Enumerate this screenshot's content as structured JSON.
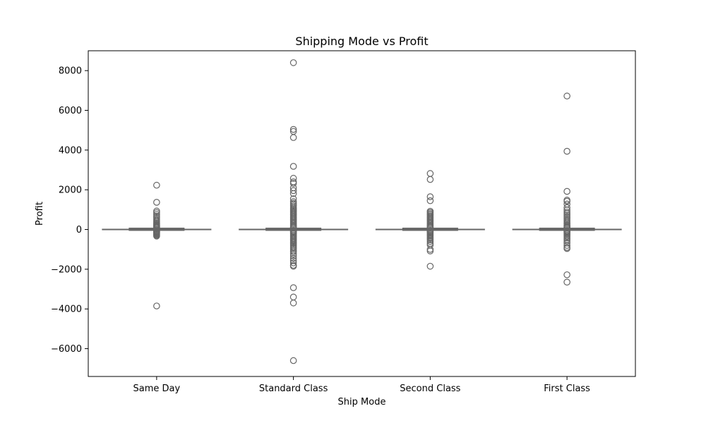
{
  "chart_data": {
    "type": "box",
    "title": "Shipping Mode vs Profit",
    "xlabel": "Ship Mode",
    "ylabel": "Profit",
    "categories": [
      "Same Day",
      "Standard Class",
      "Second Class",
      "First Class"
    ],
    "ylim": [
      -7400,
      9000
    ],
    "yticks": [
      -6000,
      -4000,
      -2000,
      0,
      2000,
      4000,
      6000,
      8000
    ],
    "ytick_labels": [
      "−6000",
      "−4000",
      "−2000",
      "0",
      "2000",
      "4000",
      "6000",
      "8000"
    ],
    "grid": false,
    "colors": {
      "box_edge": "#666666",
      "box_fill": "#ffffff",
      "frame": "#000000"
    },
    "boxes": [
      {
        "category": "Same Day",
        "q1": 2,
        "median": 9,
        "q3": 30,
        "whisker_low": -40,
        "whisker_high": 70,
        "outliers": [
          2230,
          1370,
          930,
          850,
          760,
          680,
          600,
          520,
          450,
          390,
          330,
          280,
          240,
          200,
          170,
          140,
          110,
          90,
          -60,
          -80,
          -100,
          -120,
          -150,
          -180,
          -210,
          -250,
          -290,
          -330,
          -3850
        ]
      },
      {
        "category": "Standard Class",
        "q1": 2,
        "median": 9,
        "q3": 30,
        "whisker_low": -40,
        "whisker_high": 70,
        "outliers": [
          8400,
          5040,
          4940,
          4630,
          3180,
          2580,
          2400,
          2320,
          2100,
          1960,
          1810,
          1550,
          1400,
          1320,
          1250,
          1180,
          1100,
          1040,
          980,
          920,
          860,
          800,
          740,
          680,
          620,
          560,
          500,
          440,
          380,
          320,
          260,
          200,
          150,
          110,
          90,
          -60,
          -90,
          -130,
          -170,
          -220,
          -280,
          -340,
          -400,
          -460,
          -520,
          -580,
          -640,
          -700,
          -760,
          -830,
          -900,
          -960,
          -1040,
          -1120,
          -1230,
          -1330,
          -1450,
          -1570,
          -1680,
          -1800,
          -1850,
          -2930,
          -3400,
          -3700,
          -6600
        ]
      },
      {
        "category": "Second Class",
        "q1": 2,
        "median": 9,
        "q3": 30,
        "whisker_low": -40,
        "whisker_high": 70,
        "outliers": [
          2820,
          2520,
          1650,
          1450,
          920,
          860,
          800,
          740,
          680,
          620,
          560,
          500,
          440,
          380,
          320,
          260,
          200,
          150,
          110,
          90,
          -60,
          -90,
          -130,
          -180,
          -230,
          -280,
          -330,
          -390,
          -450,
          -520,
          -600,
          -700,
          -780,
          -1000,
          -1080,
          -1850
        ]
      },
      {
        "category": "First Class",
        "q1": 2,
        "median": 9,
        "q3": 30,
        "whisker_low": -40,
        "whisker_high": 70,
        "outliers": [
          6720,
          3940,
          1920,
          1480,
          1420,
          1280,
          1100,
          980,
          880,
          800,
          720,
          640,
          560,
          480,
          410,
          340,
          280,
          220,
          170,
          130,
          100,
          90,
          -60,
          -90,
          -130,
          -180,
          -230,
          -290,
          -350,
          -420,
          -500,
          -580,
          -680,
          -800,
          -900,
          -960,
          -2280,
          -2650
        ]
      }
    ]
  }
}
